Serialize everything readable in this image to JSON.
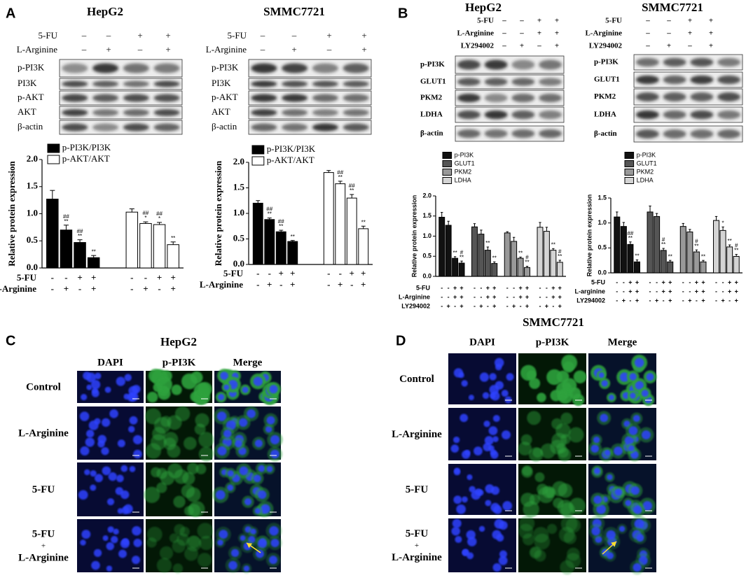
{
  "panel_labels": [
    "A",
    "B",
    "C",
    "D"
  ],
  "blots": [
    {
      "title": "HepG2",
      "treatments": [
        {
          "label": "5-FU",
          "signs": [
            "–",
            "–",
            "+",
            "+"
          ]
        },
        {
          "label": "L-Arginine",
          "signs": [
            "–",
            "+",
            "–",
            "+"
          ]
        }
      ],
      "proteins": [
        "p-PI3K",
        "PI3K",
        "p-AKT",
        "AKT",
        "β-actin"
      ]
    },
    {
      "title": "SMMC7721",
      "treatments": [
        {
          "label": "5-FU",
          "signs": [
            "–",
            "–",
            "+",
            "+"
          ]
        },
        {
          "label": "L-Arginine",
          "signs": [
            "–",
            "+",
            "–",
            "+"
          ]
        }
      ],
      "proteins": [
        "p-PI3K",
        "PI3K",
        "p-AKT",
        "AKT",
        "β-actin"
      ]
    },
    {
      "title": "HepG2",
      "treatments": [
        {
          "label": "5-FU",
          "signs": [
            "–",
            "–",
            "+",
            "+"
          ]
        },
        {
          "label": "L-Arginine",
          "signs": [
            "–",
            "–",
            "+",
            "+"
          ]
        },
        {
          "label": "LY294002",
          "signs": [
            "–",
            "+",
            "–",
            "+"
          ]
        }
      ],
      "proteins": [
        "p-PI3K",
        "GLUT1",
        "PKM2",
        "LDHA",
        "β-actin"
      ]
    },
    {
      "title": "SMMC7721",
      "treatments": [
        {
          "label": "5-FU",
          "signs": [
            "–",
            "–",
            "+",
            "+"
          ]
        },
        {
          "label": "L-Arginine",
          "signs": [
            "–",
            "–",
            "+",
            "+"
          ]
        },
        {
          "label": "LY294002",
          "signs": [
            "–",
            "+",
            "–",
            "+"
          ]
        }
      ],
      "proteins": [
        "p-PI3K",
        "GLUT1",
        "PKM2",
        "LDHA",
        "β-actin"
      ]
    }
  ],
  "chart_data": [
    {
      "type": "bar",
      "ylabel": "Relative protein expression",
      "ylim": [
        0,
        2.0
      ],
      "edgecolor": "#000000",
      "yticks": [
        {
          "value": 0,
          "label": "0.0"
        },
        {
          "value": 0.5,
          "label": "0.5"
        },
        {
          "value": 1,
          "label": "1.0"
        },
        {
          "value": 1.5,
          "label": "1.5"
        },
        {
          "value": 2,
          "label": "2.0"
        }
      ],
      "series": [
        {
          "name": "p-PI3K/PI3K",
          "color": "#000000",
          "values": [
            1.27,
            0.7,
            0.47,
            0.19
          ],
          "errors": [
            0.16,
            0.09,
            0.05,
            0.04
          ],
          "sig": [
            [],
            [
              "##",
              "**"
            ],
            [
              "##",
              "**"
            ],
            [
              "**"
            ]
          ]
        },
        {
          "name": "p-AKT/AKT",
          "color": "#ffffff",
          "values": [
            1.03,
            0.82,
            0.8,
            0.43
          ],
          "errors": [
            0.06,
            0.03,
            0.04,
            0.05
          ],
          "sig": [
            [],
            [
              "##",
              "*"
            ],
            [
              "##",
              "*"
            ],
            [
              "**"
            ]
          ]
        }
      ],
      "treatments": [
        {
          "label": "5-FU",
          "signs": [
            "-",
            "-",
            "+",
            "+",
            "-",
            "-",
            "+",
            "+"
          ]
        },
        {
          "label": "L-Arginine",
          "signs": [
            "-",
            "+",
            "-",
            "+",
            "-",
            "+",
            "-",
            "+"
          ]
        }
      ]
    },
    {
      "type": "bar",
      "ylabel": "Relative protein expression",
      "ylim": [
        0,
        2.0
      ],
      "edgecolor": "#000000",
      "yticks": [
        {
          "value": 0,
          "label": "0.0"
        },
        {
          "value": 0.5,
          "label": "0.5"
        },
        {
          "value": 1,
          "label": "1.0"
        },
        {
          "value": 1.5,
          "label": "1.5"
        },
        {
          "value": 2,
          "label": "2.0"
        }
      ],
      "series": [
        {
          "name": "p-PI3K/PI3K",
          "color": "#000000",
          "values": [
            1.2,
            0.88,
            0.64,
            0.45
          ],
          "errors": [
            0.05,
            0.03,
            0.03,
            0.02
          ],
          "sig": [
            [],
            [
              "##",
              "**"
            ],
            [
              "##",
              "**"
            ],
            [
              "**"
            ]
          ]
        },
        {
          "name": "p-AKT/AKT",
          "color": "#ffffff",
          "values": [
            1.8,
            1.58,
            1.3,
            0.7
          ],
          "errors": [
            0.04,
            0.05,
            0.07,
            0.05
          ],
          "sig": [
            [],
            [
              "##",
              "**"
            ],
            [
              "##",
              "**"
            ],
            [
              "**"
            ]
          ]
        }
      ],
      "treatments": [
        {
          "label": "5-FU",
          "signs": [
            "-",
            "-",
            "+",
            "+",
            "-",
            "-",
            "+",
            "+"
          ]
        },
        {
          "label": "L-Arginine",
          "signs": [
            "-",
            "+",
            "-",
            "+",
            "-",
            "+",
            "-",
            "+"
          ]
        }
      ]
    },
    {
      "type": "bar",
      "ylabel": "Relative protein expression",
      "ylim": [
        0,
        2.0
      ],
      "edgecolor": "#000000",
      "yticks": [
        {
          "value": 0,
          "label": "0.0"
        },
        {
          "value": 0.5,
          "label": "0.5"
        },
        {
          "value": 1,
          "label": "1.0"
        },
        {
          "value": 1.5,
          "label": "1.5"
        },
        {
          "value": 2,
          "label": "2.0"
        }
      ],
      "series": [
        {
          "name": "p-PI3K",
          "color": "#111111",
          "values": [
            1.47,
            1.27,
            0.45,
            0.33
          ],
          "errors": [
            0.12,
            0.1,
            0.04,
            0.05
          ],
          "sig": [
            [],
            [],
            [
              "**"
            ],
            [
              "#",
              "**"
            ]
          ]
        },
        {
          "name": "GLUT1",
          "color": "#555555",
          "values": [
            1.23,
            1.05,
            0.65,
            0.32
          ],
          "errors": [
            0.08,
            0.1,
            0.08,
            0.04
          ],
          "sig": [
            [],
            [],
            [
              "**"
            ],
            [
              "**"
            ]
          ]
        },
        {
          "name": "PKM2",
          "color": "#999999",
          "values": [
            1.08,
            0.87,
            0.45,
            0.22
          ],
          "errors": [
            0.03,
            0.1,
            0.03,
            0.03
          ],
          "sig": [
            [],
            [],
            [
              "**"
            ],
            [
              "#",
              "**"
            ]
          ]
        },
        {
          "name": "LDHA",
          "color": "#d4d4d4",
          "values": [
            1.22,
            1.12,
            0.65,
            0.35
          ],
          "errors": [
            0.12,
            0.1,
            0.04,
            0.05
          ],
          "sig": [
            [],
            [],
            [
              "**"
            ],
            [
              "#",
              "**"
            ]
          ]
        }
      ],
      "treatments": [
        {
          "label": "5-FU",
          "signs": [
            "-",
            "-",
            "+",
            "+",
            "-",
            "-",
            "+",
            "+",
            "-",
            "-",
            "+",
            "+",
            "-",
            "-",
            "+",
            "+"
          ]
        },
        {
          "label": "L-Arginine",
          "signs": [
            "-",
            "-",
            "+",
            "+",
            "-",
            "-",
            "+",
            "+",
            "-",
            "-",
            "+",
            "+",
            "-",
            "-",
            "+",
            "+"
          ]
        },
        {
          "label": "LY294002",
          "signs": [
            "-",
            "+",
            "-",
            "+",
            "-",
            "+",
            "-",
            "+",
            "-",
            "+",
            "-",
            "+",
            "-",
            "+",
            "-",
            "+"
          ]
        }
      ]
    },
    {
      "type": "bar",
      "ylabel": "Relative protein expression",
      "ylim": [
        0,
        1.5
      ],
      "edgecolor": "#000000",
      "yticks": [
        {
          "value": 0,
          "label": "0.0"
        },
        {
          "value": 0.5,
          "label": "0.5"
        },
        {
          "value": 1,
          "label": "1.0"
        },
        {
          "value": 1.5,
          "label": "1.5"
        }
      ],
      "series": [
        {
          "name": "p-PI3K",
          "color": "#111111",
          "values": [
            1.12,
            0.93,
            0.57,
            0.22
          ],
          "errors": [
            0.1,
            0.08,
            0.05,
            0.04
          ],
          "sig": [
            [],
            [],
            [
              "##",
              "**"
            ],
            [
              "**"
            ]
          ]
        },
        {
          "name": "GLUT1",
          "color": "#555555",
          "values": [
            1.22,
            1.13,
            0.45,
            0.22
          ],
          "errors": [
            0.12,
            0.06,
            0.04,
            0.03
          ],
          "sig": [
            [],
            [],
            [
              "#",
              "**"
            ],
            [
              "**"
            ]
          ]
        },
        {
          "name": "PKM2",
          "color": "#999999",
          "values": [
            0.93,
            0.82,
            0.42,
            0.22
          ],
          "errors": [
            0.06,
            0.05,
            0.04,
            0.03
          ],
          "sig": [
            [],
            [],
            [
              "#",
              "**"
            ],
            [
              "**"
            ]
          ]
        },
        {
          "name": "LDHA",
          "color": "#d4d4d4",
          "values": [
            1.05,
            0.85,
            0.52,
            0.33
          ],
          "errors": [
            0.08,
            0.07,
            0.04,
            0.04
          ],
          "sig": [
            [],
            [
              "*"
            ],
            [
              "**"
            ],
            [
              "#",
              "**"
            ]
          ]
        }
      ],
      "treatments": [
        {
          "label": "5-FU",
          "signs": [
            "-",
            "-",
            "+",
            "+",
            "-",
            "-",
            "+",
            "+",
            "-",
            "-",
            "+",
            "+",
            "-",
            "-",
            "+",
            "+"
          ]
        },
        {
          "label": "L-arginine",
          "signs": [
            "-",
            "-",
            "+",
            "+",
            "-",
            "-",
            "+",
            "+",
            "-",
            "-",
            "+",
            "+",
            "-",
            "-",
            "+",
            "+"
          ]
        },
        {
          "label": "LY294002",
          "signs": [
            "-",
            "+",
            "-",
            "+",
            "-",
            "+",
            "-",
            "+",
            "-",
            "+",
            "-",
            "+",
            "-",
            "+",
            "-",
            "+"
          ]
        }
      ]
    }
  ],
  "imaging": [
    {
      "title": "HepG2",
      "columns": [
        "DAPI",
        "p-PI3K",
        "Merge"
      ],
      "rows": [
        [
          "Control"
        ],
        [
          "L-Arginine"
        ],
        [
          "5-FU"
        ],
        [
          "5-FU",
          "+",
          "L-Arginine"
        ]
      ]
    },
    {
      "title": "SMMC7721",
      "columns": [
        "DAPI",
        "p-PI3K",
        "Merge"
      ],
      "rows": [
        [
          "Control"
        ],
        [
          "L-Arginine"
        ],
        [
          "5-FU"
        ],
        [
          "5-FU",
          "+",
          "L-Arginine"
        ]
      ]
    }
  ]
}
